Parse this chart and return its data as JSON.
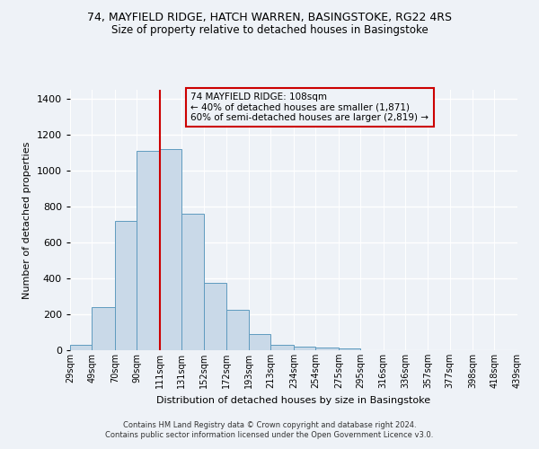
{
  "title": "74, MAYFIELD RIDGE, HATCH WARREN, BASINGSTOKE, RG22 4RS",
  "subtitle": "Size of property relative to detached houses in Basingstoke",
  "xlabel": "Distribution of detached houses by size in Basingstoke",
  "ylabel": "Number of detached properties",
  "bin_labels": [
    "29sqm",
    "49sqm",
    "70sqm",
    "90sqm",
    "111sqm",
    "131sqm",
    "152sqm",
    "172sqm",
    "193sqm",
    "213sqm",
    "234sqm",
    "254sqm",
    "275sqm",
    "295sqm",
    "316sqm",
    "336sqm",
    "357sqm",
    "377sqm",
    "398sqm",
    "418sqm",
    "439sqm"
  ],
  "bin_edges": [
    29,
    49,
    70,
    90,
    111,
    131,
    152,
    172,
    193,
    213,
    234,
    254,
    275,
    295,
    316,
    336,
    357,
    377,
    398,
    418,
    439
  ],
  "bar_heights": [
    30,
    240,
    720,
    1110,
    1120,
    760,
    375,
    225,
    90,
    28,
    18,
    15,
    12,
    0,
    0,
    0,
    0,
    0,
    0,
    0
  ],
  "bar_color": "#c9d9e8",
  "bar_edge_color": "#5f9bbf",
  "vline_x": 111,
  "vline_color": "#cc0000",
  "annotation_title": "74 MAYFIELD RIDGE: 108sqm",
  "annotation_line1": "← 40% of detached houses are smaller (1,871)",
  "annotation_line2": "60% of semi-detached houses are larger (2,819) →",
  "annotation_box_edge": "#cc0000",
  "ylim": [
    0,
    1450
  ],
  "yticks": [
    0,
    200,
    400,
    600,
    800,
    1000,
    1200,
    1400
  ],
  "footer1": "Contains HM Land Registry data © Crown copyright and database right 2024.",
  "footer2": "Contains public sector information licensed under the Open Government Licence v3.0.",
  "background_color": "#eef2f7",
  "title_fontsize": 9,
  "subtitle_fontsize": 8.5
}
